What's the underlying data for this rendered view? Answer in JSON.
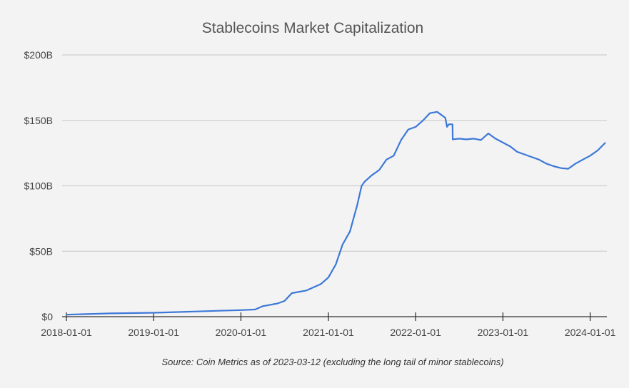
{
  "chart_data": {
    "type": "line",
    "title": "Stablecoins Market Capitalization",
    "source_note": "Source: Coin Metrics as of 2023-03-12 (excluding the long tail of minor stablecoins)",
    "xlabel": "",
    "ylabel": "",
    "x_ticks": [
      "2018-01-01",
      "2019-01-01",
      "2020-01-01",
      "2021-01-01",
      "2022-01-01",
      "2023-01-01",
      "2024-01-01"
    ],
    "y_ticks": [
      {
        "value": 0,
        "label": "$0"
      },
      {
        "value": 50,
        "label": "$50B"
      },
      {
        "value": 100,
        "label": "$100B"
      },
      {
        "value": 150,
        "label": "$150B"
      },
      {
        "value": 200,
        "label": "$200B"
      }
    ],
    "ylim": [
      0,
      200
    ],
    "y_unit": "billion USD",
    "xlim": [
      "2018-01-01",
      "2024-03-10"
    ],
    "grid": true,
    "line_color": "#3c78d8",
    "points": [
      [
        "2018-01-01",
        1.5
      ],
      [
        "2018-07-01",
        2.5
      ],
      [
        "2019-01-01",
        3
      ],
      [
        "2019-04-01",
        3.5
      ],
      [
        "2019-07-01",
        4
      ],
      [
        "2019-10-01",
        4.5
      ],
      [
        "2020-01-01",
        5
      ],
      [
        "2020-03-01",
        5.5
      ],
      [
        "2020-04-01",
        8
      ],
      [
        "2020-06-01",
        10
      ],
      [
        "2020-07-01",
        12
      ],
      [
        "2020-08-01",
        18
      ],
      [
        "2020-10-01",
        20
      ],
      [
        "2020-12-01",
        25
      ],
      [
        "2021-01-01",
        30
      ],
      [
        "2021-02-01",
        40
      ],
      [
        "2021-03-01",
        55
      ],
      [
        "2021-04-01",
        65
      ],
      [
        "2021-05-01",
        85
      ],
      [
        "2021-05-20",
        100
      ],
      [
        "2021-06-01",
        103
      ],
      [
        "2021-07-01",
        108
      ],
      [
        "2021-08-01",
        112
      ],
      [
        "2021-09-01",
        120
      ],
      [
        "2021-10-01",
        123
      ],
      [
        "2021-11-01",
        135
      ],
      [
        "2021-12-01",
        143
      ],
      [
        "2022-01-01",
        145
      ],
      [
        "2022-02-01",
        150
      ],
      [
        "2022-03-01",
        155.5
      ],
      [
        "2022-04-01",
        156.5
      ],
      [
        "2022-05-05",
        152
      ],
      [
        "2022-05-12",
        145
      ],
      [
        "2022-05-20",
        147
      ],
      [
        "2022-06-04",
        147
      ],
      [
        "2022-06-05",
        135.5
      ],
      [
        "2022-07-01",
        136
      ],
      [
        "2022-08-01",
        135.5
      ],
      [
        "2022-09-01",
        136
      ],
      [
        "2022-10-01",
        135
      ],
      [
        "2022-11-01",
        140
      ],
      [
        "2022-12-01",
        136
      ],
      [
        "2023-01-01",
        133
      ],
      [
        "2023-02-01",
        130
      ],
      [
        "2023-03-01",
        126
      ],
      [
        "2023-04-01",
        124
      ],
      [
        "2023-05-01",
        122
      ],
      [
        "2023-06-01",
        120
      ],
      [
        "2023-07-01",
        117
      ],
      [
        "2023-08-01",
        115
      ],
      [
        "2023-09-01",
        113.5
      ],
      [
        "2023-10-01",
        113
      ],
      [
        "2023-11-01",
        117
      ],
      [
        "2023-12-01",
        120
      ],
      [
        "2024-01-01",
        123
      ],
      [
        "2024-02-01",
        127
      ],
      [
        "2024-03-05",
        133
      ]
    ]
  }
}
